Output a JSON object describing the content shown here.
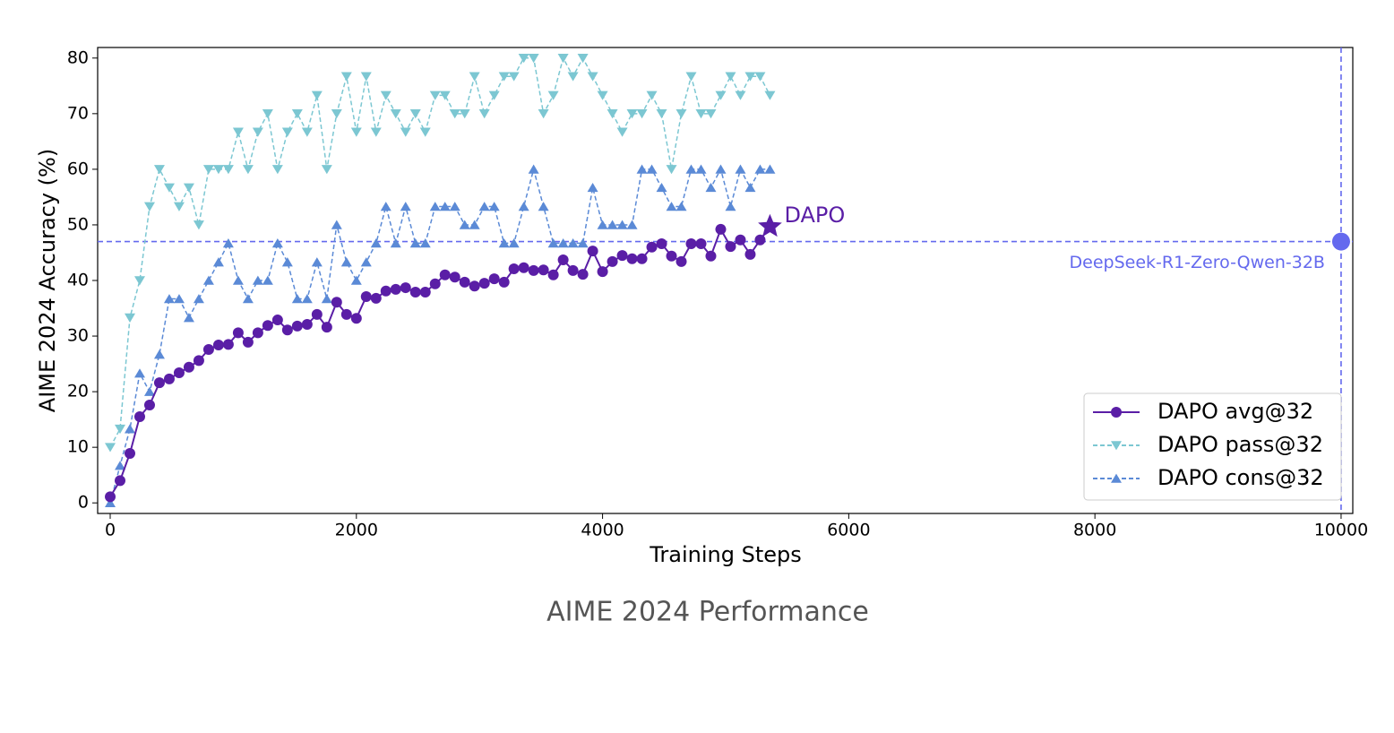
{
  "chart_data": {
    "type": "line",
    "title": "AIME 2024 Performance",
    "x_label": "Training Steps",
    "y_label": "AIME 2024 Accuracy (%)",
    "xlim": [
      -102,
      10095
    ],
    "ylim": [
      -1.9,
      81.9
    ],
    "xticks": [
      0,
      2000,
      4000,
      6000,
      8000,
      10000
    ],
    "yticks": [
      0,
      10,
      20,
      30,
      40,
      50,
      60,
      70,
      80
    ],
    "legend": "lower right",
    "x": [
      0,
      80,
      160,
      240,
      320,
      400,
      480,
      560,
      640,
      720,
      800,
      880,
      960,
      1040,
      1120,
      1200,
      1280,
      1360,
      1440,
      1520,
      1600,
      1680,
      1760,
      1840,
      1920,
      2000,
      2080,
      2160,
      2240,
      2320,
      2400,
      2480,
      2560,
      2640,
      2720,
      2800,
      2880,
      2960,
      3040,
      3120,
      3200,
      3280,
      3360,
      3440,
      3520,
      3600,
      3680,
      3760,
      3840,
      3920,
      4000,
      4080,
      4160,
      4240,
      4320,
      4400,
      4480,
      4560,
      4640,
      4720,
      4800,
      4880,
      4960,
      5040,
      5120,
      5200,
      5280,
      5360
    ],
    "series": [
      {
        "name": "DAPO avg@32",
        "color": "#5a1ea6",
        "marker": "circle",
        "dashed": false,
        "last_marker": "star",
        "last_label": "DAPO",
        "values": [
          1.1,
          4,
          8.9,
          15.5,
          17.6,
          21.6,
          22.3,
          23.4,
          24.4,
          25.6,
          27.6,
          28.4,
          28.5,
          30.6,
          28.9,
          30.6,
          31.9,
          32.9,
          31.1,
          31.8,
          32.1,
          33.9,
          31.6,
          36.1,
          33.9,
          33.2,
          37.1,
          36.8,
          38.1,
          38.4,
          38.7,
          37.9,
          37.9,
          39.4,
          41.0,
          40.6,
          39.7,
          39.0,
          39.5,
          40.3,
          39.7,
          42.1,
          42.3,
          41.8,
          41.9,
          41.0,
          43.7,
          41.8,
          41.1,
          45.3,
          41.6,
          43.4,
          44.5,
          43.9,
          43.9,
          46.0,
          46.6,
          44.4,
          43.4,
          46.6,
          46.6,
          44.4,
          49.2,
          46.1,
          47.3,
          44.7,
          47.3,
          49.7
        ]
      },
      {
        "name": "DAPO pass@32",
        "color": "#7cc7d2",
        "marker": "down",
        "dashed": true,
        "values": [
          10,
          13.3,
          33.3,
          40,
          53.3,
          60,
          56.7,
          53.3,
          56.7,
          50,
          60,
          60,
          60,
          66.7,
          60,
          66.7,
          70,
          60,
          66.7,
          70,
          66.7,
          73.3,
          60,
          70,
          76.7,
          66.7,
          76.7,
          66.7,
          73.3,
          70,
          66.7,
          70,
          66.7,
          73.3,
          73.3,
          70,
          70,
          76.7,
          70,
          73.3,
          76.7,
          76.7,
          80,
          80,
          70,
          73.3,
          80,
          76.7,
          80,
          76.7,
          73.3,
          70,
          66.7,
          70,
          70,
          73.3,
          70,
          60,
          70,
          76.7,
          70,
          70,
          73.3,
          76.7,
          73.3,
          76.7,
          76.7,
          73.3
        ]
      },
      {
        "name": "DAPO cons@32",
        "color": "#5b8ad6",
        "marker": "up",
        "dashed": true,
        "values": [
          0,
          6.7,
          13.3,
          23.3,
          20,
          26.7,
          36.7,
          36.7,
          33.3,
          36.7,
          40,
          43.3,
          46.7,
          40,
          36.7,
          40,
          40,
          46.7,
          43.3,
          36.7,
          36.7,
          43.3,
          36.7,
          50,
          43.3,
          40,
          43.3,
          46.7,
          53.3,
          46.7,
          53.3,
          46.7,
          46.7,
          53.3,
          53.3,
          53.3,
          50,
          50,
          53.3,
          53.3,
          46.7,
          46.7,
          53.3,
          60,
          53.3,
          46.7,
          46.7,
          46.7,
          46.7,
          56.7,
          50,
          50,
          50,
          50,
          60,
          60,
          56.7,
          53.3,
          53.3,
          60,
          60,
          56.7,
          60,
          53.3,
          60,
          56.7,
          60,
          60
        ]
      }
    ],
    "reference": {
      "label": "DeepSeek-R1-Zero-Qwen-32B",
      "x": 10000,
      "y": 47,
      "color": "#6469ee"
    }
  }
}
